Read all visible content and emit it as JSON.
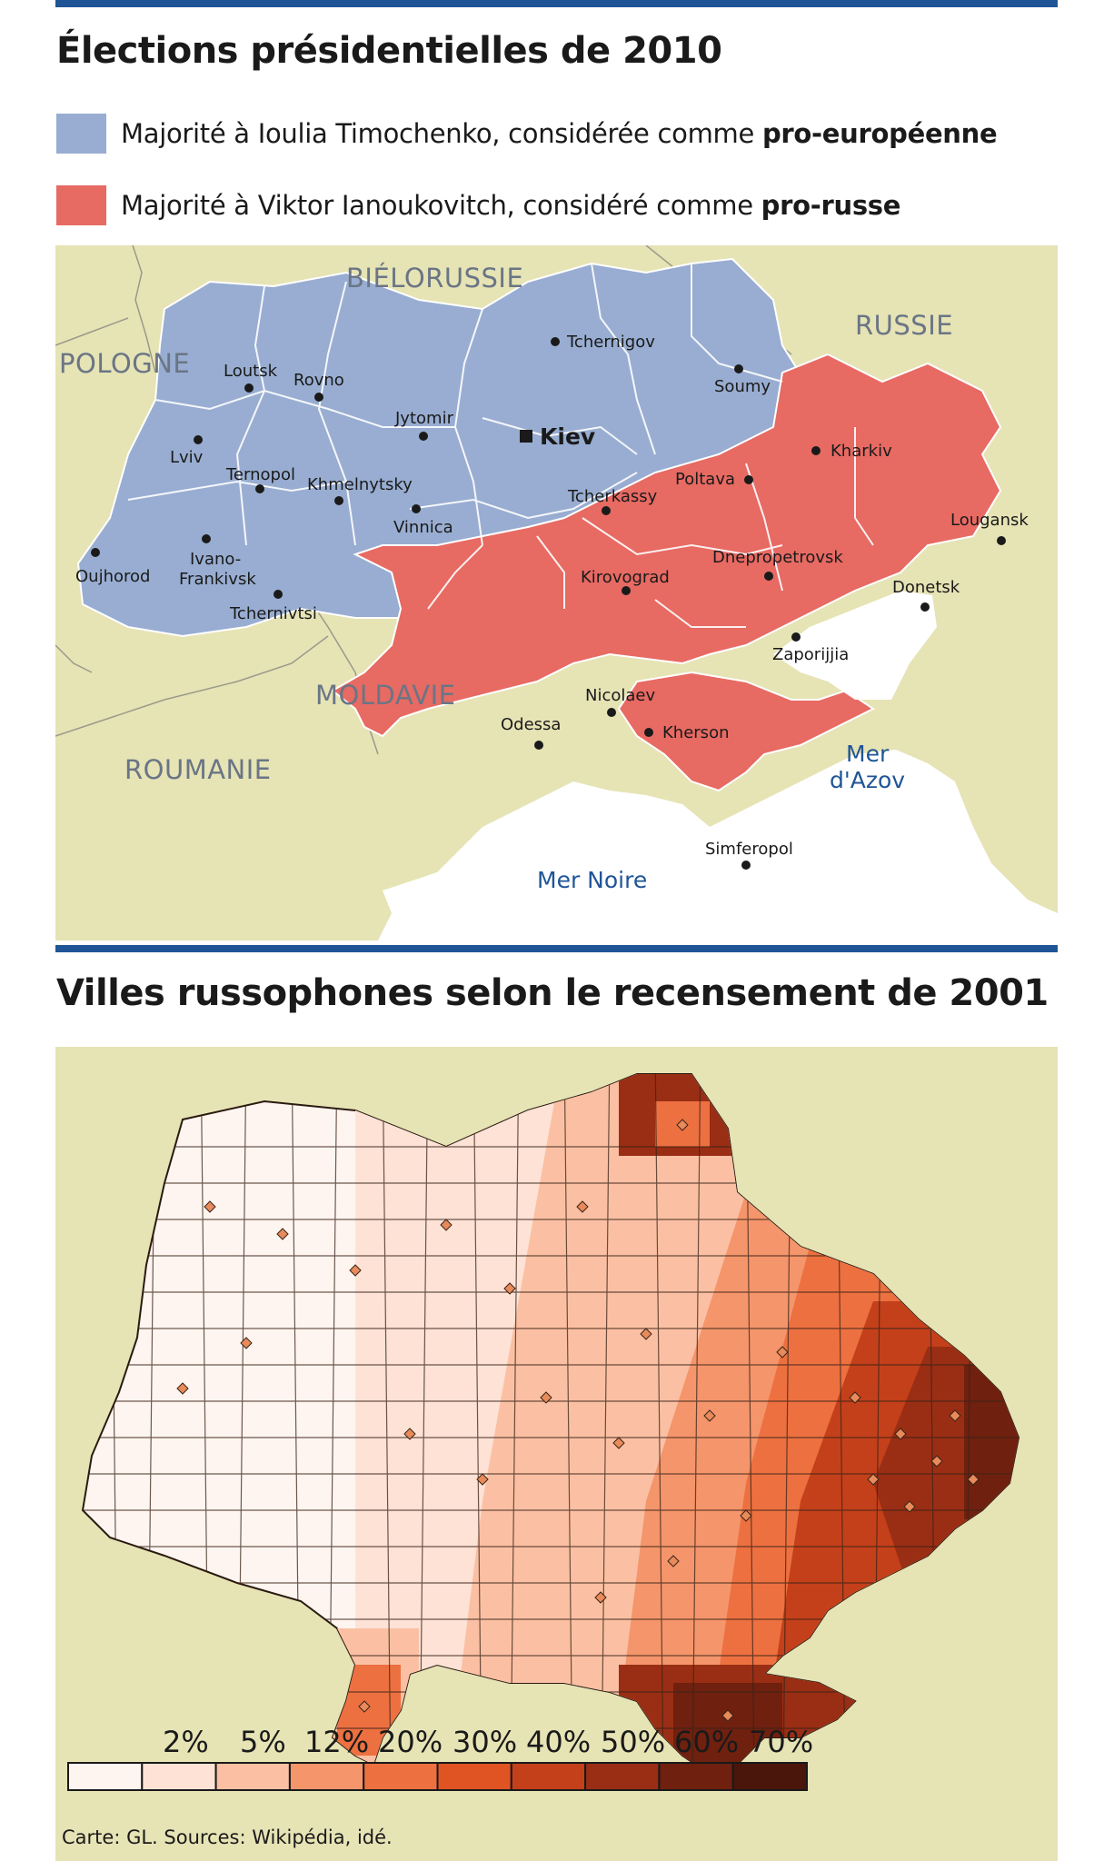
{
  "map1": {
    "title": "Élections présidentielles de 2010",
    "legend": [
      {
        "text": "Majorité à Ioulia Timochenko, considérée comme ",
        "bold": "pro-européenne",
        "color": "#98add1"
      },
      {
        "text": "Majorité à Viktor Ianoukovitch, considéré comme ",
        "bold": "pro-russe",
        "color": "#e76a63"
      }
    ],
    "countries": [
      "BIÉLORUSSIE",
      "RUSSIE",
      "POLOGNE",
      "MOLDAVIE",
      "ROUMANIE"
    ],
    "seas": [
      "Mer Noire",
      "Mer",
      "d'Azov"
    ],
    "capital": "Kiev",
    "cities": [
      "Tchernigov",
      "Loutsk",
      "Rovno",
      "Soumy",
      "Jytomir",
      "Lviv",
      "Kharkiv",
      "Ternopol",
      "Khmelnytsky",
      "Poltava",
      "Tcherkassy",
      "Lougansk",
      "Vinnica",
      "Oujhorod",
      "Ivano-",
      "Frankivsk",
      "Dnepropetrovsk",
      "Kirovograd",
      "Donetsk",
      "Tchernivtsi",
      "Zaporijjia",
      "Nicolaev",
      "Odessa",
      "Kherson",
      "Simferopol"
    ],
    "colors": {
      "land": "#e6e3b5",
      "water": "#ffffff",
      "pro_eu": "#98add1",
      "pro_ru": "#e76a63"
    }
  },
  "map2": {
    "title": "Villes russophones selon le recensement de 2001",
    "scale_labels": [
      "2%",
      "5%",
      "12%",
      "20%",
      "30%",
      "40%",
      "50%",
      "60%",
      "70%"
    ],
    "scale_colors": [
      "#fff5f0",
      "#fde2d5",
      "#fbc0a3",
      "#f5956b",
      "#ed7040",
      "#e05322",
      "#c4401a",
      "#9a2e14",
      "#6f200f",
      "#4a150a"
    ]
  },
  "source": "Carte: GL. Sources: Wikipédia, idé."
}
